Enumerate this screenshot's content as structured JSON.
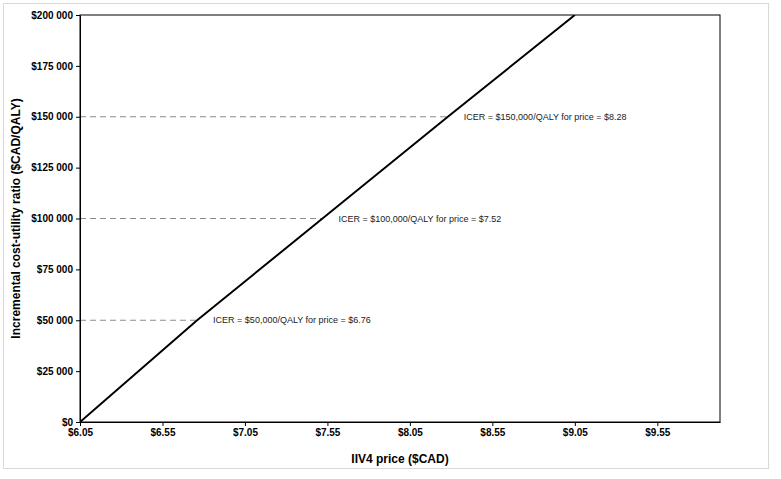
{
  "chart_data": {
    "type": "line",
    "x_label": "IIV4 price ($CAD)",
    "y_label": "Incremental cost-utility ratio ($CAD/QALY)",
    "x": [
      6.05,
      6.76,
      7.52,
      8.28,
      9.05
    ],
    "values": [
      0,
      50000,
      100000,
      150000,
      200000
    ],
    "color": "#000000",
    "grid": false,
    "xlim": [
      6.05,
      9.93
    ],
    "ylim": [
      0,
      200000
    ],
    "xticks": [
      {
        "value": 6.05,
        "label": "$6.05"
      },
      {
        "value": 6.55,
        "label": "$6.55"
      },
      {
        "value": 7.05,
        "label": "$7.05"
      },
      {
        "value": 7.55,
        "label": "$7.55"
      },
      {
        "value": 8.05,
        "label": "$8.05"
      },
      {
        "value": 8.55,
        "label": "$8.55"
      },
      {
        "value": 9.05,
        "label": "$9.05"
      },
      {
        "value": 9.55,
        "label": "$9.55"
      }
    ],
    "yticks": [
      {
        "value": 0,
        "label": "$0"
      },
      {
        "value": 25000,
        "label": "$25 000"
      },
      {
        "value": 50000,
        "label": "$50 000"
      },
      {
        "value": 75000,
        "label": "$75 000"
      },
      {
        "value": 100000,
        "label": "$100 000"
      },
      {
        "value": 125000,
        "label": "$125 000"
      },
      {
        "value": 150000,
        "label": "$150 000"
      },
      {
        "value": 175000,
        "label": "$175 000"
      },
      {
        "value": 200000,
        "label": "$200 000"
      }
    ],
    "annotations": [
      {
        "text": "ICER = $50,000/QALY for price = $6.76",
        "x": 6.76,
        "y": 50000
      },
      {
        "text": "ICER = $100,000/QALY for price = $7.52",
        "x": 7.52,
        "y": 100000
      },
      {
        "text": "ICER = $150,000/QALY for price = $8.28",
        "x": 8.28,
        "y": 150000
      }
    ]
  }
}
